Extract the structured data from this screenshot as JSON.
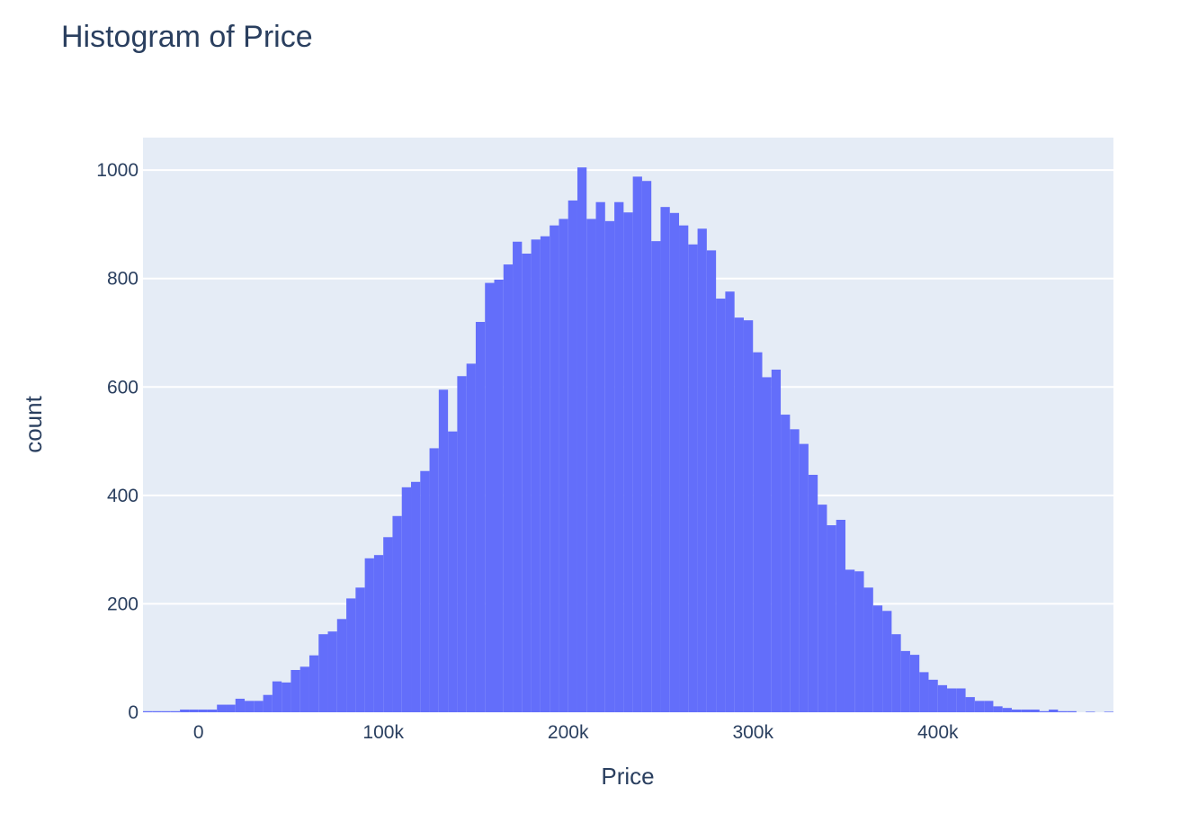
{
  "chart_data": {
    "type": "bar",
    "title": "Histogram of Price",
    "xlabel": "Price",
    "ylabel": "count",
    "xlim": [
      -30000,
      495000
    ],
    "ylim": [
      0,
      1060
    ],
    "grid": true,
    "legend": "none",
    "bin_width": 5000,
    "colors": {
      "bar": "#636efa",
      "plot_bg": "#e5ecf6",
      "text": "#2a3f5f"
    },
    "x_ticks": [
      {
        "value": 0,
        "label": "0"
      },
      {
        "value": 100000,
        "label": "100k"
      },
      {
        "value": 200000,
        "label": "200k"
      },
      {
        "value": 300000,
        "label": "300k"
      },
      {
        "value": 400000,
        "label": "400k"
      }
    ],
    "y_ticks": [
      {
        "value": 0,
        "label": "0"
      },
      {
        "value": 200,
        "label": "200"
      },
      {
        "value": 400,
        "label": "400"
      },
      {
        "value": 600,
        "label": "600"
      },
      {
        "value": 800,
        "label": "800"
      },
      {
        "value": 1000,
        "label": "1000"
      }
    ],
    "bins": [
      {
        "x0": -30000,
        "y": 2
      },
      {
        "x0": -25000,
        "y": 2
      },
      {
        "x0": -20000,
        "y": 2
      },
      {
        "x0": -15000,
        "y": 2
      },
      {
        "x0": -10000,
        "y": 5
      },
      {
        "x0": -5000,
        "y": 5
      },
      {
        "x0": 0,
        "y": 5
      },
      {
        "x0": 5000,
        "y": 5
      },
      {
        "x0": 10000,
        "y": 14
      },
      {
        "x0": 15000,
        "y": 14
      },
      {
        "x0": 20000,
        "y": 25
      },
      {
        "x0": 25000,
        "y": 21
      },
      {
        "x0": 30000,
        "y": 21
      },
      {
        "x0": 35000,
        "y": 32
      },
      {
        "x0": 40000,
        "y": 57
      },
      {
        "x0": 45000,
        "y": 55
      },
      {
        "x0": 50000,
        "y": 78
      },
      {
        "x0": 55000,
        "y": 84
      },
      {
        "x0": 60000,
        "y": 105
      },
      {
        "x0": 65000,
        "y": 144
      },
      {
        "x0": 70000,
        "y": 149
      },
      {
        "x0": 75000,
        "y": 172
      },
      {
        "x0": 80000,
        "y": 210
      },
      {
        "x0": 85000,
        "y": 230
      },
      {
        "x0": 90000,
        "y": 284
      },
      {
        "x0": 95000,
        "y": 290
      },
      {
        "x0": 100000,
        "y": 323
      },
      {
        "x0": 105000,
        "y": 362
      },
      {
        "x0": 110000,
        "y": 415
      },
      {
        "x0": 115000,
        "y": 425
      },
      {
        "x0": 120000,
        "y": 445
      },
      {
        "x0": 125000,
        "y": 487
      },
      {
        "x0": 130000,
        "y": 595
      },
      {
        "x0": 135000,
        "y": 518
      },
      {
        "x0": 140000,
        "y": 620
      },
      {
        "x0": 145000,
        "y": 643
      },
      {
        "x0": 150000,
        "y": 720
      },
      {
        "x0": 155000,
        "y": 792
      },
      {
        "x0": 160000,
        "y": 798
      },
      {
        "x0": 165000,
        "y": 826
      },
      {
        "x0": 170000,
        "y": 868
      },
      {
        "x0": 175000,
        "y": 846
      },
      {
        "x0": 180000,
        "y": 872
      },
      {
        "x0": 185000,
        "y": 878
      },
      {
        "x0": 190000,
        "y": 898
      },
      {
        "x0": 195000,
        "y": 910
      },
      {
        "x0": 200000,
        "y": 944
      },
      {
        "x0": 205000,
        "y": 1005
      },
      {
        "x0": 210000,
        "y": 910
      },
      {
        "x0": 215000,
        "y": 941
      },
      {
        "x0": 220000,
        "y": 906
      },
      {
        "x0": 225000,
        "y": 941
      },
      {
        "x0": 230000,
        "y": 922
      },
      {
        "x0": 235000,
        "y": 988
      },
      {
        "x0": 240000,
        "y": 980
      },
      {
        "x0": 245000,
        "y": 869
      },
      {
        "x0": 250000,
        "y": 932
      },
      {
        "x0": 255000,
        "y": 921
      },
      {
        "x0": 260000,
        "y": 898
      },
      {
        "x0": 265000,
        "y": 863
      },
      {
        "x0": 270000,
        "y": 892
      },
      {
        "x0": 275000,
        "y": 852
      },
      {
        "x0": 280000,
        "y": 763
      },
      {
        "x0": 285000,
        "y": 776
      },
      {
        "x0": 290000,
        "y": 728
      },
      {
        "x0": 295000,
        "y": 723
      },
      {
        "x0": 300000,
        "y": 664
      },
      {
        "x0": 305000,
        "y": 618
      },
      {
        "x0": 310000,
        "y": 632
      },
      {
        "x0": 315000,
        "y": 549
      },
      {
        "x0": 320000,
        "y": 522
      },
      {
        "x0": 325000,
        "y": 495
      },
      {
        "x0": 330000,
        "y": 438
      },
      {
        "x0": 335000,
        "y": 383
      },
      {
        "x0": 340000,
        "y": 345
      },
      {
        "x0": 345000,
        "y": 355
      },
      {
        "x0": 350000,
        "y": 263
      },
      {
        "x0": 355000,
        "y": 260
      },
      {
        "x0": 360000,
        "y": 230
      },
      {
        "x0": 365000,
        "y": 197
      },
      {
        "x0": 370000,
        "y": 187
      },
      {
        "x0": 375000,
        "y": 144
      },
      {
        "x0": 380000,
        "y": 113
      },
      {
        "x0": 385000,
        "y": 106
      },
      {
        "x0": 390000,
        "y": 74
      },
      {
        "x0": 395000,
        "y": 60
      },
      {
        "x0": 400000,
        "y": 50
      },
      {
        "x0": 405000,
        "y": 44
      },
      {
        "x0": 410000,
        "y": 44
      },
      {
        "x0": 415000,
        "y": 28
      },
      {
        "x0": 420000,
        "y": 21
      },
      {
        "x0": 425000,
        "y": 21
      },
      {
        "x0": 430000,
        "y": 11
      },
      {
        "x0": 435000,
        "y": 8
      },
      {
        "x0": 440000,
        "y": 5
      },
      {
        "x0": 445000,
        "y": 5
      },
      {
        "x0": 450000,
        "y": 5
      },
      {
        "x0": 455000,
        "y": 2
      },
      {
        "x0": 460000,
        "y": 5
      },
      {
        "x0": 465000,
        "y": 2
      },
      {
        "x0": 470000,
        "y": 2
      },
      {
        "x0": 480000,
        "y": 1
      },
      {
        "x0": 490000,
        "y": 1
      }
    ]
  }
}
